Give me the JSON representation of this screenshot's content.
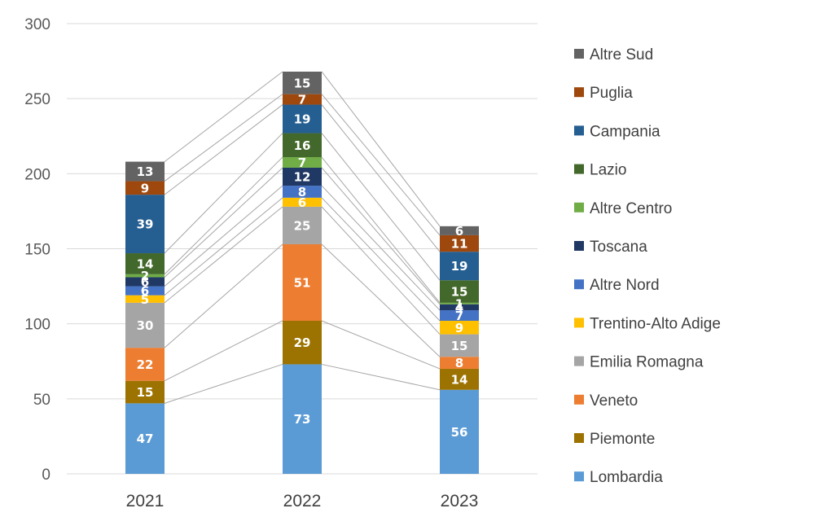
{
  "chart_data": {
    "type": "bar",
    "stacked": true,
    "categories": [
      "2021",
      "2022",
      "2023"
    ],
    "ylim": [
      0,
      300
    ],
    "yticks": [
      0,
      50,
      100,
      150,
      200,
      250,
      300
    ],
    "grid": true,
    "legend_position": "right",
    "series_lines": true,
    "series": [
      {
        "name": "Lombardia",
        "color": "#5b9bd5",
        "values": [
          47,
          73,
          56
        ]
      },
      {
        "name": "Piemonte",
        "color": "#9c7200",
        "values": [
          15,
          29,
          14
        ]
      },
      {
        "name": "Veneto",
        "color": "#ed7d31",
        "values": [
          22,
          51,
          8
        ]
      },
      {
        "name": "Emilia Romagna",
        "color": "#a5a5a5",
        "values": [
          30,
          25,
          15
        ]
      },
      {
        "name": "Trentino-Alto Adige",
        "color": "#ffc000",
        "values": [
          5,
          6,
          9
        ]
      },
      {
        "name": "Altre Nord",
        "color": "#4472c4",
        "values": [
          6,
          8,
          7
        ]
      },
      {
        "name": "Toscana",
        "color": "#203864",
        "values": [
          6,
          12,
          4
        ]
      },
      {
        "name": "Altre Centro",
        "color": "#70ad47",
        "values": [
          2,
          7,
          1
        ]
      },
      {
        "name": "Lazio",
        "color": "#43682b",
        "values": [
          14,
          16,
          15
        ]
      },
      {
        "name": "Campania",
        "color": "#255e91",
        "values": [
          39,
          19,
          19
        ]
      },
      {
        "name": "Puglia",
        "color": "#9e480e",
        "values": [
          9,
          7,
          11
        ]
      },
      {
        "name": "Altre Sud",
        "color": "#636363",
        "values": [
          13,
          15,
          6
        ]
      }
    ]
  }
}
